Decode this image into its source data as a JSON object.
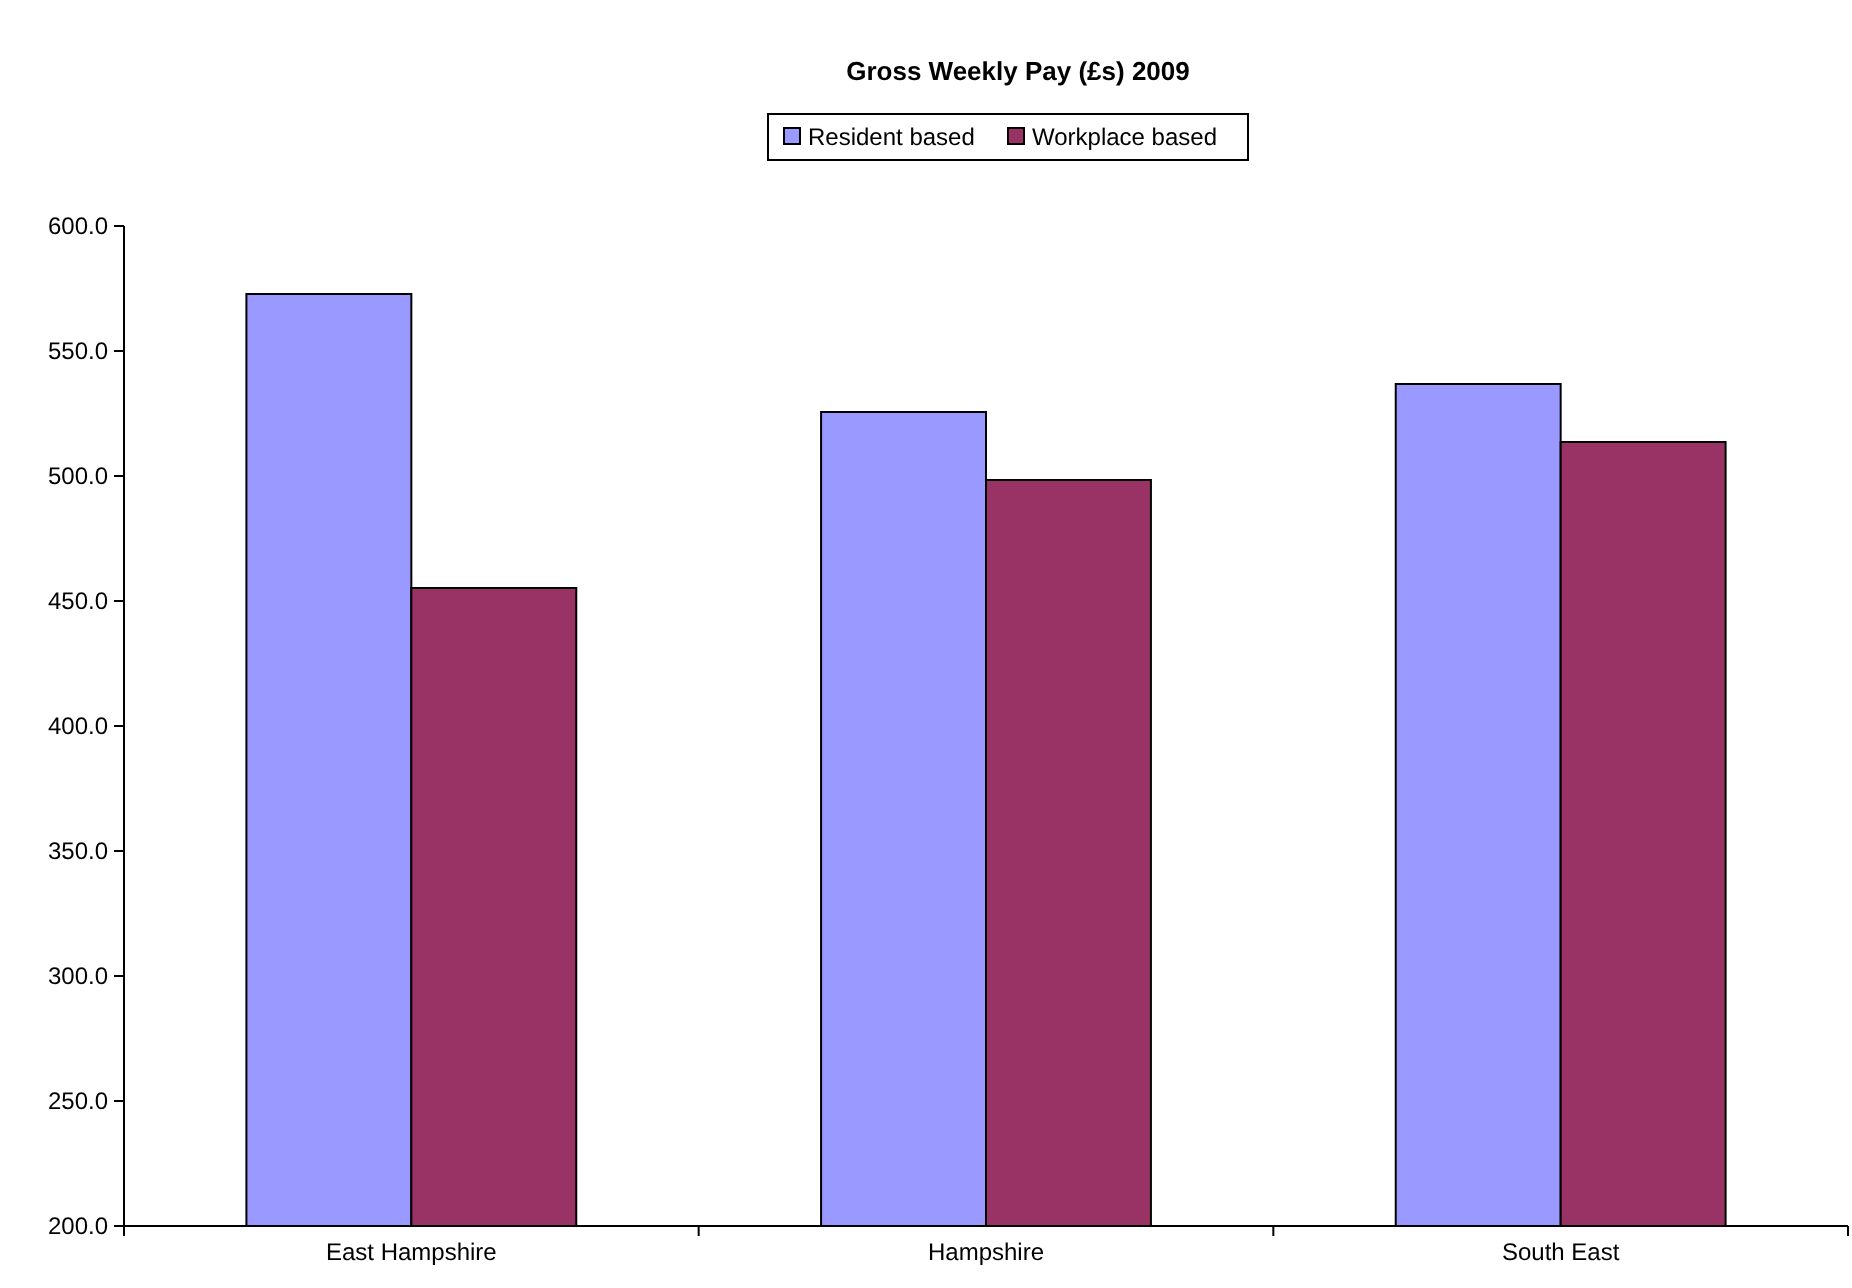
{
  "chart_data": {
    "type": "bar",
    "title": "Gross Weekly Pay (£s) 2009",
    "categories": [
      "East Hampshire",
      "Hampshire",
      "South East"
    ],
    "series": [
      {
        "name": "Resident based",
        "color": "#9999ff",
        "values": [
          572.8,
          525.6,
          536.8
        ]
      },
      {
        "name": "Workplace based",
        "color": "#993366",
        "values": [
          455.2,
          498.4,
          513.6
        ]
      }
    ],
    "ylim": [
      200,
      600
    ],
    "yticks": [
      {
        "value": 200,
        "label": "200.0"
      },
      {
        "value": 250,
        "label": "250.0"
      },
      {
        "value": 300,
        "label": "300.0"
      },
      {
        "value": 350,
        "label": "350.0"
      },
      {
        "value": 400,
        "label": "400.0"
      },
      {
        "value": 450,
        "label": "450.0"
      },
      {
        "value": 500,
        "label": "500.0"
      },
      {
        "value": 550,
        "label": "550.0"
      },
      {
        "value": 600,
        "label": "600.0"
      }
    ],
    "grid": false,
    "legend": "top"
  }
}
